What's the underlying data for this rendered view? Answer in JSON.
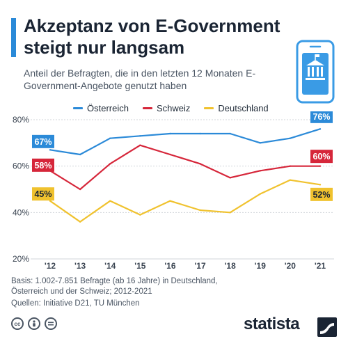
{
  "header": {
    "title": "Akzeptanz von E-Government steigt nur langsam",
    "subtitle": "Anteil der Befragten, die in den letzten 12 Monaten E-Government-Angebote genutzt haben"
  },
  "colors": {
    "oesterreich": "#2b8ad8",
    "schweiz": "#d6263a",
    "deutschland": "#f0c22e",
    "accent": "#2b8ad8"
  },
  "chart_data": {
    "type": "line",
    "x": [
      "'12",
      "'13",
      "'14",
      "'15",
      "'16",
      "'17",
      "'18",
      "'19",
      "'20",
      "'21"
    ],
    "ylim": [
      20,
      80
    ],
    "yticks": [
      "20%",
      "40%",
      "60%",
      "80%"
    ],
    "grid": true,
    "legend_position": "top",
    "series": [
      {
        "name": "Österreich",
        "color": "#2b8ad8",
        "values": [
          67,
          65,
          72,
          73,
          74,
          74,
          74,
          70,
          72,
          76
        ],
        "start_label": "67%",
        "end_label": "76%"
      },
      {
        "name": "Schweiz",
        "color": "#d6263a",
        "values": [
          58,
          50,
          61,
          69,
          65,
          61,
          55,
          58,
          60,
          60
        ],
        "start_label": "58%",
        "end_label": "60%"
      },
      {
        "name": "Deutschland",
        "color": "#f0c22e",
        "values": [
          45,
          36,
          45,
          39,
          45,
          41,
          40,
          48,
          54,
          52
        ],
        "start_label": "45%",
        "end_label": "52%"
      }
    ]
  },
  "footer": {
    "basis": "Basis: 1.002-7.851 Befragte (ab 16 Jahre) in Deutschland, Österreich und der Schweiz; 2012-2021",
    "sources": "Quellen: Initiative D21, TU München",
    "brand": "statista"
  }
}
